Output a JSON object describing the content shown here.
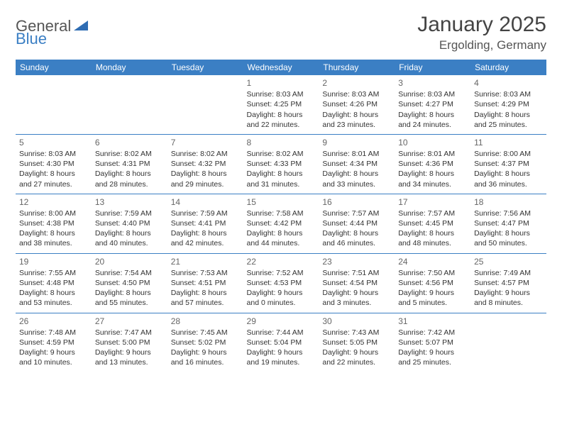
{
  "logo": {
    "text1": "General",
    "text2": "Blue"
  },
  "title": "January 2025",
  "location": "Ergolding, Germany",
  "colors": {
    "header_bg": "#3b7fc4",
    "header_text": "#ffffff",
    "border": "#3b7fc4",
    "text": "#333333",
    "muted": "#666666",
    "background": "#ffffff"
  },
  "typography": {
    "title_fontsize": 30,
    "location_fontsize": 17,
    "dayheader_fontsize": 12,
    "daynum_fontsize": 12,
    "body_fontsize": 10.5
  },
  "day_headers": [
    "Sunday",
    "Monday",
    "Tuesday",
    "Wednesday",
    "Thursday",
    "Friday",
    "Saturday"
  ],
  "weeks": [
    [
      null,
      null,
      null,
      {
        "n": "1",
        "sunrise": "8:03 AM",
        "sunset": "4:25 PM",
        "daylight": "8 hours and 22 minutes."
      },
      {
        "n": "2",
        "sunrise": "8:03 AM",
        "sunset": "4:26 PM",
        "daylight": "8 hours and 23 minutes."
      },
      {
        "n": "3",
        "sunrise": "8:03 AM",
        "sunset": "4:27 PM",
        "daylight": "8 hours and 24 minutes."
      },
      {
        "n": "4",
        "sunrise": "8:03 AM",
        "sunset": "4:29 PM",
        "daylight": "8 hours and 25 minutes."
      }
    ],
    [
      {
        "n": "5",
        "sunrise": "8:03 AM",
        "sunset": "4:30 PM",
        "daylight": "8 hours and 27 minutes."
      },
      {
        "n": "6",
        "sunrise": "8:02 AM",
        "sunset": "4:31 PM",
        "daylight": "8 hours and 28 minutes."
      },
      {
        "n": "7",
        "sunrise": "8:02 AM",
        "sunset": "4:32 PM",
        "daylight": "8 hours and 29 minutes."
      },
      {
        "n": "8",
        "sunrise": "8:02 AM",
        "sunset": "4:33 PM",
        "daylight": "8 hours and 31 minutes."
      },
      {
        "n": "9",
        "sunrise": "8:01 AM",
        "sunset": "4:34 PM",
        "daylight": "8 hours and 33 minutes."
      },
      {
        "n": "10",
        "sunrise": "8:01 AM",
        "sunset": "4:36 PM",
        "daylight": "8 hours and 34 minutes."
      },
      {
        "n": "11",
        "sunrise": "8:00 AM",
        "sunset": "4:37 PM",
        "daylight": "8 hours and 36 minutes."
      }
    ],
    [
      {
        "n": "12",
        "sunrise": "8:00 AM",
        "sunset": "4:38 PM",
        "daylight": "8 hours and 38 minutes."
      },
      {
        "n": "13",
        "sunrise": "7:59 AM",
        "sunset": "4:40 PM",
        "daylight": "8 hours and 40 minutes."
      },
      {
        "n": "14",
        "sunrise": "7:59 AM",
        "sunset": "4:41 PM",
        "daylight": "8 hours and 42 minutes."
      },
      {
        "n": "15",
        "sunrise": "7:58 AM",
        "sunset": "4:42 PM",
        "daylight": "8 hours and 44 minutes."
      },
      {
        "n": "16",
        "sunrise": "7:57 AM",
        "sunset": "4:44 PM",
        "daylight": "8 hours and 46 minutes."
      },
      {
        "n": "17",
        "sunrise": "7:57 AM",
        "sunset": "4:45 PM",
        "daylight": "8 hours and 48 minutes."
      },
      {
        "n": "18",
        "sunrise": "7:56 AM",
        "sunset": "4:47 PM",
        "daylight": "8 hours and 50 minutes."
      }
    ],
    [
      {
        "n": "19",
        "sunrise": "7:55 AM",
        "sunset": "4:48 PM",
        "daylight": "8 hours and 53 minutes."
      },
      {
        "n": "20",
        "sunrise": "7:54 AM",
        "sunset": "4:50 PM",
        "daylight": "8 hours and 55 minutes."
      },
      {
        "n": "21",
        "sunrise": "7:53 AM",
        "sunset": "4:51 PM",
        "daylight": "8 hours and 57 minutes."
      },
      {
        "n": "22",
        "sunrise": "7:52 AM",
        "sunset": "4:53 PM",
        "daylight": "9 hours and 0 minutes."
      },
      {
        "n": "23",
        "sunrise": "7:51 AM",
        "sunset": "4:54 PM",
        "daylight": "9 hours and 3 minutes."
      },
      {
        "n": "24",
        "sunrise": "7:50 AM",
        "sunset": "4:56 PM",
        "daylight": "9 hours and 5 minutes."
      },
      {
        "n": "25",
        "sunrise": "7:49 AM",
        "sunset": "4:57 PM",
        "daylight": "9 hours and 8 minutes."
      }
    ],
    [
      {
        "n": "26",
        "sunrise": "7:48 AM",
        "sunset": "4:59 PM",
        "daylight": "9 hours and 10 minutes."
      },
      {
        "n": "27",
        "sunrise": "7:47 AM",
        "sunset": "5:00 PM",
        "daylight": "9 hours and 13 minutes."
      },
      {
        "n": "28",
        "sunrise": "7:45 AM",
        "sunset": "5:02 PM",
        "daylight": "9 hours and 16 minutes."
      },
      {
        "n": "29",
        "sunrise": "7:44 AM",
        "sunset": "5:04 PM",
        "daylight": "9 hours and 19 minutes."
      },
      {
        "n": "30",
        "sunrise": "7:43 AM",
        "sunset": "5:05 PM",
        "daylight": "9 hours and 22 minutes."
      },
      {
        "n": "31",
        "sunrise": "7:42 AM",
        "sunset": "5:07 PM",
        "daylight": "9 hours and 25 minutes."
      },
      null
    ]
  ],
  "labels": {
    "sunrise": "Sunrise:",
    "sunset": "Sunset:",
    "daylight": "Daylight:"
  }
}
